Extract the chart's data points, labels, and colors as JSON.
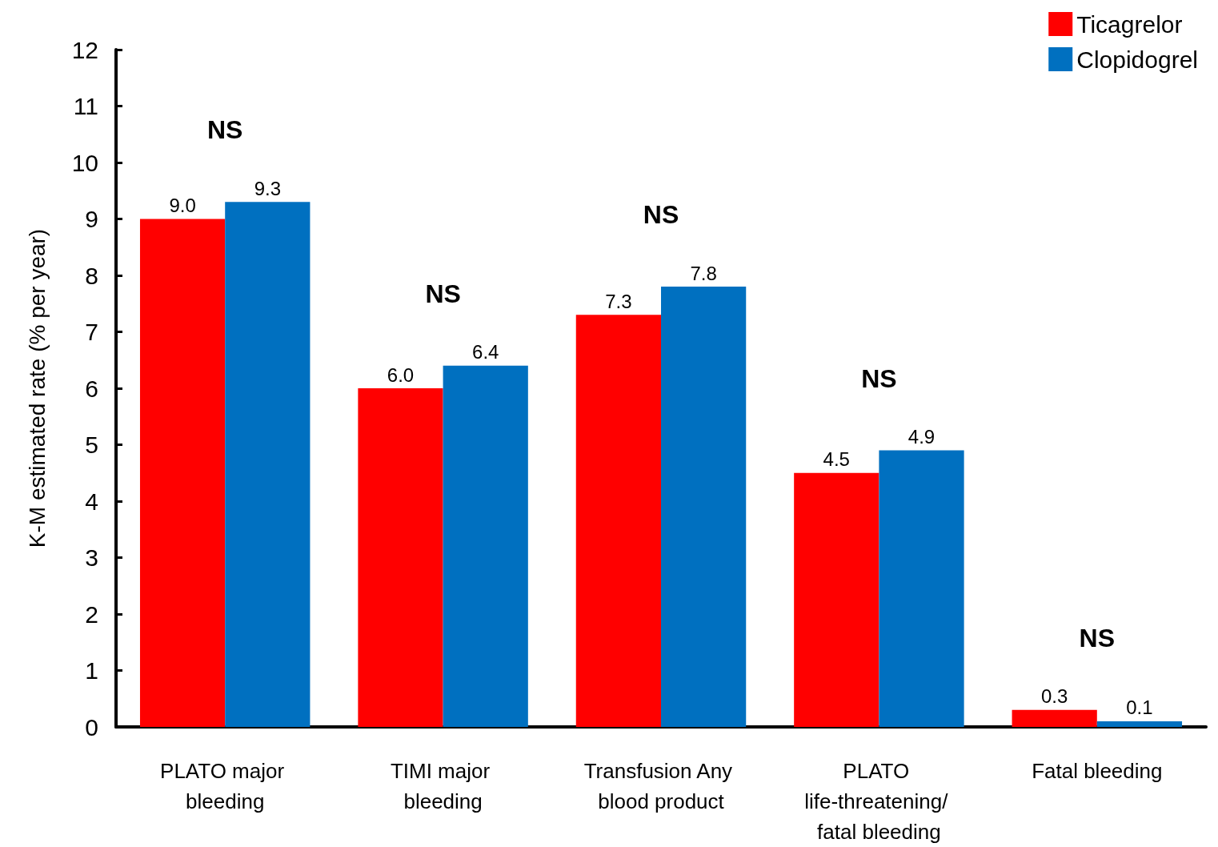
{
  "chart_data": {
    "type": "bar",
    "ylabel": "K-M estimated rate (% per year)",
    "categories": [
      "PLATO major bleeding",
      "TIMI major bleeding",
      "Transfusion Any blood product",
      "PLATO life-threatening/ fatal bleeding",
      "Fatal bleeding"
    ],
    "series": [
      {
        "name": "Ticagrelor",
        "color": "#ff0000",
        "values": [
          9.0,
          6.0,
          7.3,
          4.5,
          0.3
        ],
        "value_labels": [
          "9.0",
          "6.0",
          "7.3",
          "4.5",
          "0.3"
        ]
      },
      {
        "name": "Clopidogrel",
        "color": "#0070c0",
        "values": [
          9.3,
          6.4,
          7.8,
          4.9,
          0.1
        ],
        "value_labels": [
          "9.3",
          "6.4",
          "7.8",
          "4.9",
          "0.1"
        ]
      }
    ],
    "ylim": [
      0,
      12
    ],
    "yticks": [
      0,
      1,
      2,
      3,
      4,
      5,
      6,
      7,
      8,
      9,
      10,
      11,
      12
    ],
    "grid": false,
    "legend": "top right",
    "annotations": [
      "NS",
      "NS",
      "NS",
      "NS",
      "NS"
    ]
  }
}
